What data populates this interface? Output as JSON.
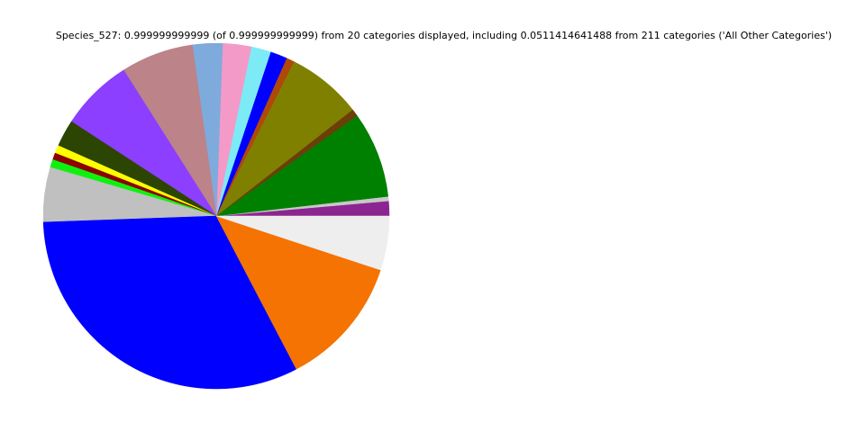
{
  "chart_data": {
    "type": "pie",
    "title": "Species_527: 0.999999999999 (of 0.999999999999) from 20 categories displayed, including 0.0511414641488 from 211 categories ('All Other Categories')",
    "start_angle_deg": 0,
    "direction": "counterclockwise",
    "legend": "none",
    "slices": [
      {
        "value": 0.0139,
        "color": "#8b2590"
      },
      {
        "value": 0.0042,
        "color": "#c8c8c8"
      },
      {
        "value": 0.0806,
        "color": "#008000"
      },
      {
        "value": 0.0069,
        "color": "#6b3e0a"
      },
      {
        "value": 0.0703,
        "color": "#808000"
      },
      {
        "value": 0.0075,
        "color": "#b0480a"
      },
      {
        "value": 0.0158,
        "color": "#0000ff"
      },
      {
        "value": 0.0183,
        "color": "#7debf5"
      },
      {
        "value": 0.0267,
        "color": "#f49ac8"
      },
      {
        "value": 0.028,
        "color": "#7faadc"
      },
      {
        "value": 0.0678,
        "color": "#bc8388"
      },
      {
        "value": 0.068,
        "color": "#8c3fff"
      },
      {
        "value": 0.0253,
        "color": "#2c4502"
      },
      {
        "value": 0.0075,
        "color": "#ffff00"
      },
      {
        "value": 0.0064,
        "color": "#8b0000"
      },
      {
        "value": 0.0075,
        "color": "#10f010"
      },
      {
        "value": 0.0511,
        "color": "#c0c0c0"
      },
      {
        "value": 0.321,
        "color": "#0000ff"
      },
      {
        "value": 0.1228,
        "color": "#f47302"
      },
      {
        "value": 0.0506,
        "color": "#eeeeee"
      }
    ]
  }
}
